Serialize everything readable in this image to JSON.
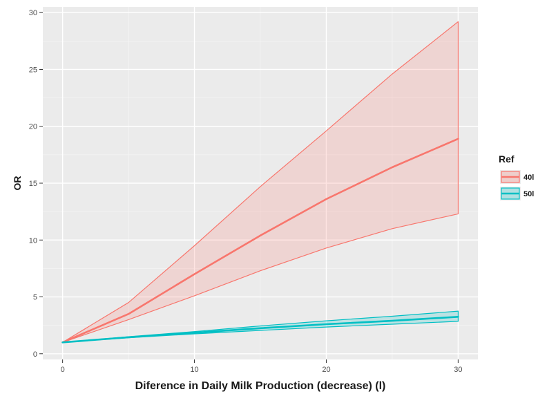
{
  "chart_data": {
    "type": "area",
    "title": "",
    "xlabel": "Diference in Daily Milk Production (decrease) (l)",
    "ylabel": "OR",
    "xlim": [
      -1.5,
      31.5
    ],
    "ylim": [
      -0.5,
      30.5
    ],
    "x_ticks": [
      0,
      10,
      20,
      30
    ],
    "y_ticks": [
      0,
      5,
      10,
      15,
      20,
      25,
      30
    ],
    "grid": true,
    "legend": {
      "title": "Ref",
      "position": "right"
    },
    "x": [
      0,
      5,
      10,
      15,
      20,
      25,
      30
    ],
    "series": [
      {
        "name": "40l",
        "color": "#f8766d",
        "fill": "#f8766d",
        "values": [
          1.0,
          3.5,
          7.0,
          10.4,
          13.6,
          16.4,
          18.9
        ],
        "lower": [
          1.0,
          3.0,
          5.1,
          7.3,
          9.3,
          11.0,
          12.3
        ],
        "upper": [
          1.0,
          4.5,
          9.5,
          14.7,
          19.6,
          24.6,
          29.2
        ]
      },
      {
        "name": "50l",
        "color": "#00bfc4",
        "fill": "#00bfc4",
        "values": [
          1.0,
          1.45,
          1.85,
          2.25,
          2.6,
          2.9,
          3.25
        ],
        "lower": [
          1.0,
          1.4,
          1.75,
          2.05,
          2.35,
          2.6,
          2.85
        ],
        "upper": [
          1.0,
          1.5,
          1.95,
          2.45,
          2.9,
          3.3,
          3.75
        ]
      }
    ]
  }
}
